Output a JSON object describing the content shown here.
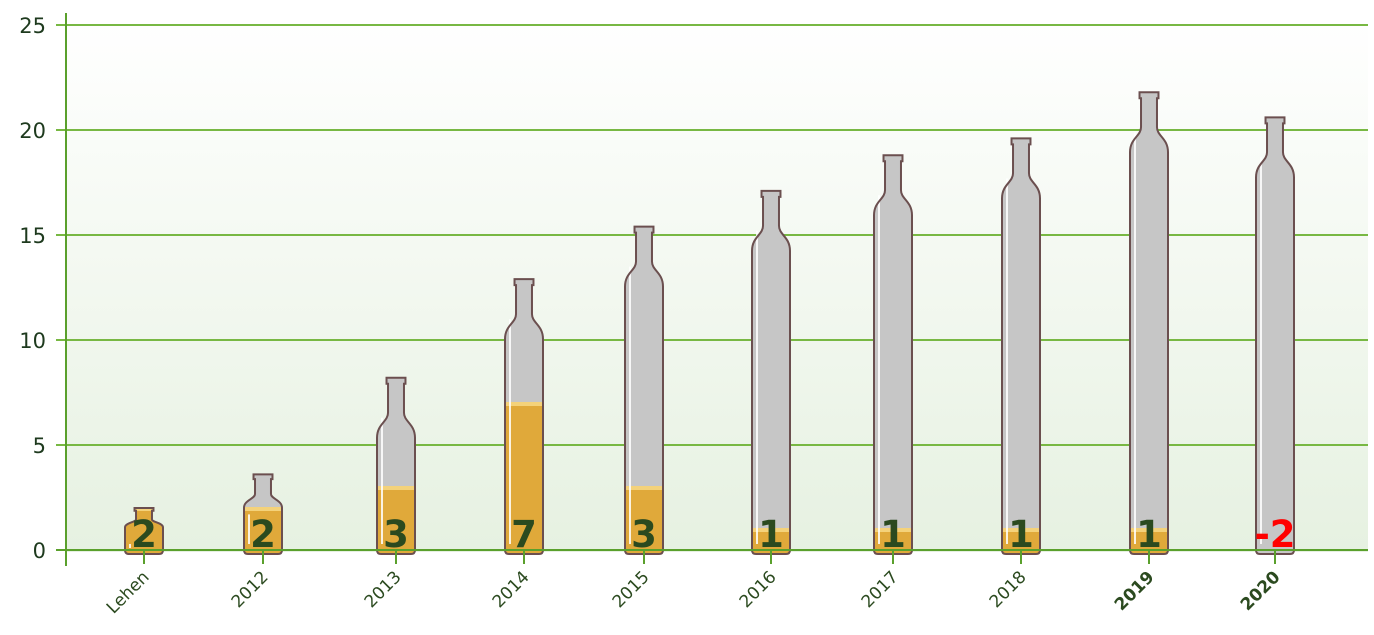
{
  "chart_data": {
    "type": "bar",
    "categories": [
      "Lehen",
      "2012",
      "2013",
      "2014",
      "2015",
      "2016",
      "2017",
      "2018",
      "2019",
      "2020"
    ],
    "series": [
      {
        "values": [
          2,
          3.6,
          8.2,
          12.9,
          15.4,
          17.1,
          18.8,
          19.6,
          21.8,
          20.6
        ]
      },
      {
        "values": [
          2,
          2,
          3,
          7,
          3,
          1,
          1,
          1,
          1,
          -2
        ]
      }
    ],
    "bold_categories": [
      "2019",
      "2020"
    ],
    "y_ticks": [
      "0",
      "5",
      "10",
      "15",
      "20",
      "25"
    ],
    "ylim": [
      0,
      25
    ],
    "xlabel": "",
    "ylabel": "",
    "title": "",
    "grid": true,
    "colors": {
      "grid": "#78b843",
      "axis": "#5aa02c",
      "bottle_glass": "#c6c6c6",
      "bottle_outline": "#6b4f4f",
      "beer": "#e0a93a",
      "foam": "#f4d27a",
      "label_positive": "#2b4a1f",
      "label_negative": "#ff0000",
      "background_top": "#ffffff",
      "background_bottom": "#e6f1e1"
    }
  }
}
